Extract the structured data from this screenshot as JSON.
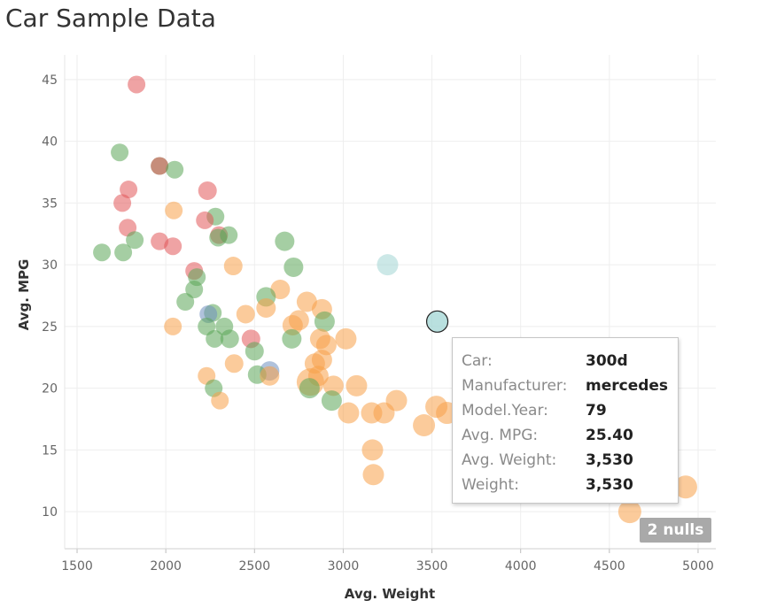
{
  "title": "Car Sample Data",
  "colors": {
    "orange": "#f8a149",
    "green": "#5ba658",
    "red": "#e15759",
    "teal": "#a2d6d4",
    "blue": "#6f8fc0",
    "gridline": "#eeeeee",
    "badge": "#a9a9a9"
  },
  "chart_data": {
    "type": "scatter",
    "title": "Car Sample Data",
    "xlabel": "Avg. Weight",
    "ylabel": "Avg. MPG",
    "xlim": [
      1430,
      5100
    ],
    "ylim": [
      7.0,
      47.0
    ],
    "xticks": [
      "1500",
      "2000",
      "2500",
      "3000",
      "3500",
      "4000",
      "4500",
      "5000"
    ],
    "yticks": [
      "10",
      "15",
      "20",
      "25",
      "30",
      "35",
      "40",
      "45"
    ],
    "grid": true,
    "points": [
      {
        "x": 1835,
        "y": 44.6,
        "c": "red",
        "s": 1.0
      },
      {
        "x": 1740,
        "y": 39.1,
        "c": "green",
        "s": 1.0
      },
      {
        "x": 1965,
        "y": 38.0,
        "c": "green",
        "s": 1.0
      },
      {
        "x": 1965,
        "y": 38.0,
        "c": "red",
        "s": 1.0
      },
      {
        "x": 2050,
        "y": 37.7,
        "c": "green",
        "s": 1.0
      },
      {
        "x": 1790,
        "y": 36.1,
        "c": "red",
        "s": 1.0
      },
      {
        "x": 2235,
        "y": 36.0,
        "c": "red",
        "s": 1.05
      },
      {
        "x": 1755,
        "y": 35.0,
        "c": "red",
        "s": 1.0
      },
      {
        "x": 2045,
        "y": 34.4,
        "c": "orange",
        "s": 1.0
      },
      {
        "x": 2280,
        "y": 33.9,
        "c": "green",
        "s": 1.0
      },
      {
        "x": 2220,
        "y": 33.6,
        "c": "red",
        "s": 1.0
      },
      {
        "x": 1785,
        "y": 33.0,
        "c": "red",
        "s": 1.0
      },
      {
        "x": 2300,
        "y": 32.4,
        "c": "red",
        "s": 1.0
      },
      {
        "x": 2355,
        "y": 32.4,
        "c": "green",
        "s": 1.0
      },
      {
        "x": 2295,
        "y": 32.2,
        "c": "green",
        "s": 1.0
      },
      {
        "x": 1825,
        "y": 32.0,
        "c": "green",
        "s": 1.0
      },
      {
        "x": 1965,
        "y": 31.9,
        "c": "red",
        "s": 1.0
      },
      {
        "x": 2670,
        "y": 31.9,
        "c": "green",
        "s": 1.1
      },
      {
        "x": 2040,
        "y": 31.5,
        "c": "red",
        "s": 1.0
      },
      {
        "x": 1640,
        "y": 31.0,
        "c": "green",
        "s": 1.0
      },
      {
        "x": 1760,
        "y": 31.0,
        "c": "green",
        "s": 1.0
      },
      {
        "x": 2380,
        "y": 29.9,
        "c": "orange",
        "s": 1.05
      },
      {
        "x": 3250,
        "y": 30.0,
        "c": "teal",
        "s": 1.2
      },
      {
        "x": 2720,
        "y": 29.8,
        "c": "green",
        "s": 1.1
      },
      {
        "x": 2160,
        "y": 29.5,
        "c": "red",
        "s": 1.0
      },
      {
        "x": 2175,
        "y": 29.0,
        "c": "green",
        "s": 1.0
      },
      {
        "x": 2645,
        "y": 28.0,
        "c": "orange",
        "s": 1.1
      },
      {
        "x": 2160,
        "y": 28.0,
        "c": "green",
        "s": 1.0
      },
      {
        "x": 2565,
        "y": 27.4,
        "c": "green",
        "s": 1.1
      },
      {
        "x": 2110,
        "y": 27.0,
        "c": "green",
        "s": 1.0
      },
      {
        "x": 2795,
        "y": 27.0,
        "c": "orange",
        "s": 1.15
      },
      {
        "x": 2565,
        "y": 26.5,
        "c": "orange",
        "s": 1.1
      },
      {
        "x": 2880,
        "y": 26.4,
        "c": "orange",
        "s": 1.15
      },
      {
        "x": 2265,
        "y": 26.1,
        "c": "green",
        "s": 1.0
      },
      {
        "x": 2240,
        "y": 26.0,
        "c": "blue",
        "s": 1.0
      },
      {
        "x": 2450,
        "y": 26.0,
        "c": "orange",
        "s": 1.05
      },
      {
        "x": 2750,
        "y": 25.5,
        "c": "orange",
        "s": 1.15
      },
      {
        "x": 2895,
        "y": 25.4,
        "c": "green",
        "s": 1.15
      },
      {
        "x": 2715,
        "y": 25.1,
        "c": "orange",
        "s": 1.15
      },
      {
        "x": 2230,
        "y": 25.0,
        "c": "green",
        "s": 1.0
      },
      {
        "x": 2040,
        "y": 25.0,
        "c": "orange",
        "s": 1.0
      },
      {
        "x": 2330,
        "y": 25.0,
        "c": "green",
        "s": 1.0
      },
      {
        "x": 3530,
        "y": 25.4,
        "c": "teal",
        "s": 1.2
      },
      {
        "x": 2275,
        "y": 24.0,
        "c": "green",
        "s": 1.0
      },
      {
        "x": 2360,
        "y": 24.0,
        "c": "green",
        "s": 1.05
      },
      {
        "x": 2480,
        "y": 24.0,
        "c": "red",
        "s": 1.05
      },
      {
        "x": 2710,
        "y": 24.0,
        "c": "green",
        "s": 1.1
      },
      {
        "x": 2870,
        "y": 24.0,
        "c": "orange",
        "s": 1.15
      },
      {
        "x": 3015,
        "y": 24.0,
        "c": "orange",
        "s": 1.2
      },
      {
        "x": 2905,
        "y": 23.5,
        "c": "orange",
        "s": 1.15
      },
      {
        "x": 2500,
        "y": 23.0,
        "c": "green",
        "s": 1.05
      },
      {
        "x": 2880,
        "y": 22.3,
        "c": "orange",
        "s": 1.15
      },
      {
        "x": 2385,
        "y": 22.0,
        "c": "orange",
        "s": 1.05
      },
      {
        "x": 2840,
        "y": 22.0,
        "c": "orange",
        "s": 1.15
      },
      {
        "x": 2585,
        "y": 21.4,
        "c": "blue",
        "s": 1.1
      },
      {
        "x": 2515,
        "y": 21.1,
        "c": "green",
        "s": 1.05
      },
      {
        "x": 2585,
        "y": 21.0,
        "c": "orange",
        "s": 1.1
      },
      {
        "x": 2860,
        "y": 21.0,
        "c": "orange",
        "s": 1.15
      },
      {
        "x": 2230,
        "y": 21.0,
        "c": "orange",
        "s": 1.0
      },
      {
        "x": 2815,
        "y": 20.5,
        "c": "orange",
        "s": 1.55
      },
      {
        "x": 2945,
        "y": 20.2,
        "c": "orange",
        "s": 1.15
      },
      {
        "x": 3075,
        "y": 20.2,
        "c": "orange",
        "s": 1.2
      },
      {
        "x": 2810,
        "y": 20.0,
        "c": "green",
        "s": 1.15
      },
      {
        "x": 2270,
        "y": 20.0,
        "c": "green",
        "s": 1.0
      },
      {
        "x": 2935,
        "y": 19.0,
        "c": "green",
        "s": 1.15
      },
      {
        "x": 2305,
        "y": 19.0,
        "c": "orange",
        "s": 1.0
      },
      {
        "x": 3300,
        "y": 19.0,
        "c": "orange",
        "s": 1.2
      },
      {
        "x": 3525,
        "y": 18.5,
        "c": "orange",
        "s": 1.25
      },
      {
        "x": 3030,
        "y": 18.0,
        "c": "orange",
        "s": 1.2
      },
      {
        "x": 3160,
        "y": 18.0,
        "c": "orange",
        "s": 1.2
      },
      {
        "x": 3230,
        "y": 18.0,
        "c": "orange",
        "s": 1.2
      },
      {
        "x": 3585,
        "y": 18.0,
        "c": "orange",
        "s": 1.25
      },
      {
        "x": 3455,
        "y": 17.0,
        "c": "orange",
        "s": 1.25
      },
      {
        "x": 3165,
        "y": 15.0,
        "c": "orange",
        "s": 1.2
      },
      {
        "x": 3170,
        "y": 13.0,
        "c": "orange",
        "s": 1.2
      },
      {
        "x": 4930,
        "y": 12.0,
        "c": "orange",
        "s": 1.3
      },
      {
        "x": 4615,
        "y": 10.0,
        "c": "orange",
        "s": 1.3
      }
    ],
    "highlight_index": 42
  },
  "tooltip": {
    "rows": [
      {
        "key": "Car:",
        "value": "300d"
      },
      {
        "key": "Manufacturer:",
        "value": "mercedes"
      },
      {
        "key": "Model.Year:",
        "value": "79"
      },
      {
        "key": "Avg. MPG:",
        "value": "25.40"
      },
      {
        "key": "Avg. Weight:",
        "value": "3,530"
      },
      {
        "key": "Weight:",
        "value": "3,530"
      }
    ]
  },
  "nulls_badge": "2 nulls"
}
